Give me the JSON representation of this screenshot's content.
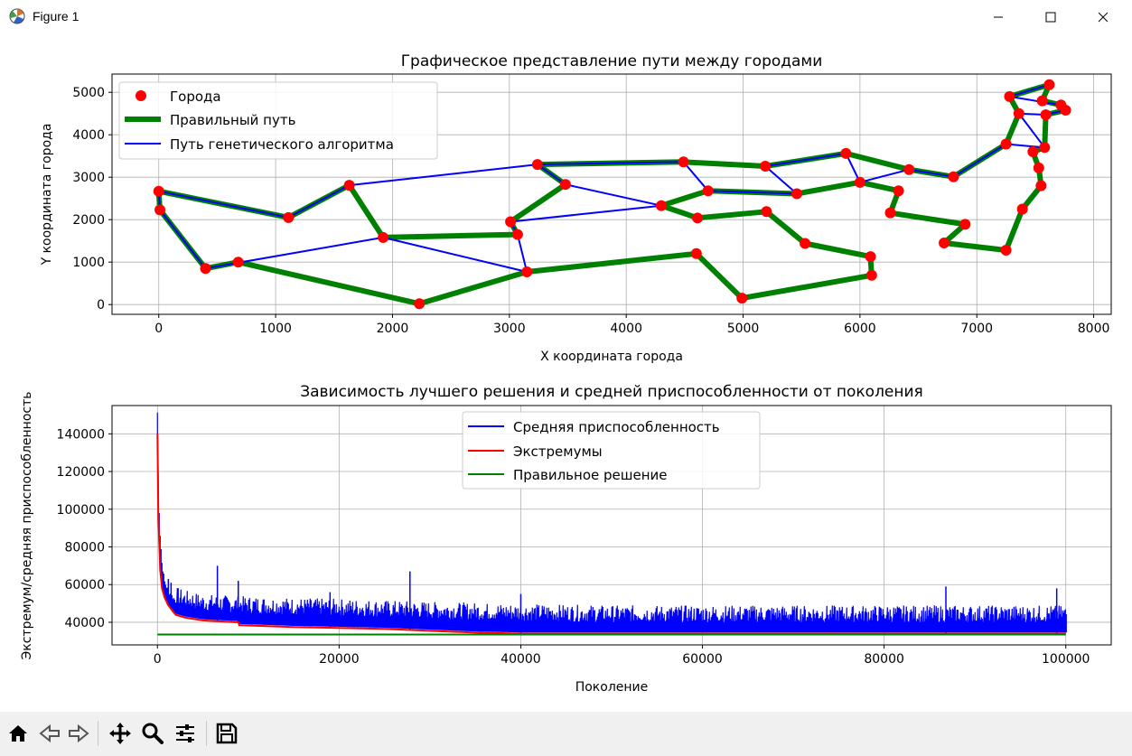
{
  "window": {
    "title": "Figure 1",
    "controls": [
      "minimize-icon",
      "maximize-icon",
      "close-icon"
    ]
  },
  "toolbar": {
    "buttons": [
      "home-icon",
      "back-icon",
      "forward-icon",
      "pan-icon",
      "zoom-icon",
      "configure-subplots-icon",
      "save-icon"
    ]
  },
  "chart_data": [
    {
      "type": "scatter",
      "title": "Графическое представление пути между городами",
      "xlabel": "X координата города",
      "ylabel": "Y координата города",
      "xlim": [
        -400,
        8150
      ],
      "ylim": [
        -230,
        5430
      ],
      "xticks": [
        0,
        1000,
        2000,
        3000,
        4000,
        5000,
        6000,
        7000,
        8000
      ],
      "yticks": [
        0,
        1000,
        2000,
        3000,
        4000,
        5000
      ],
      "grid": true,
      "legend_position": "top-left",
      "legend": [
        "Города",
        "Правильный путь",
        "Путь генетического алгоритма"
      ],
      "colors": {
        "cities": "#ff0000",
        "correct_path": "#008000",
        "ga_path": "#0000ff"
      },
      "cities": [
        [
          0,
          2670
        ],
        [
          10,
          2230
        ],
        [
          400,
          850
        ],
        [
          680,
          1000
        ],
        [
          1110,
          2050
        ],
        [
          1630,
          2810
        ],
        [
          1920,
          1580
        ],
        [
          2230,
          20
        ],
        [
          3010,
          1950
        ],
        [
          3070,
          1650
        ],
        [
          3150,
          770
        ],
        [
          3240,
          3300
        ],
        [
          3480,
          2830
        ],
        [
          4300,
          2330
        ],
        [
          4490,
          3360
        ],
        [
          4600,
          1200
        ],
        [
          4610,
          2040
        ],
        [
          4700,
          2680
        ],
        [
          4990,
          150
        ],
        [
          5190,
          3260
        ],
        [
          5200,
          2190
        ],
        [
          5460,
          2610
        ],
        [
          5530,
          1440
        ],
        [
          5880,
          3560
        ],
        [
          6000,
          2880
        ],
        [
          6090,
          1130
        ],
        [
          6100,
          690
        ],
        [
          6260,
          2160
        ],
        [
          6330,
          2680
        ],
        [
          6420,
          3180
        ],
        [
          6720,
          1450
        ],
        [
          6800,
          3010
        ],
        [
          6900,
          1890
        ],
        [
          7250,
          1280
        ],
        [
          7250,
          3780
        ],
        [
          7280,
          4900
        ],
        [
          7360,
          4500
        ],
        [
          7390,
          2250
        ],
        [
          7480,
          3600
        ],
        [
          7530,
          3220
        ],
        [
          7550,
          2800
        ],
        [
          7560,
          4800
        ],
        [
          7580,
          3700
        ],
        [
          7590,
          4470
        ],
        [
          7620,
          5180
        ],
        [
          7720,
          4700
        ],
        [
          7760,
          4580
        ]
      ],
      "correct_path": [
        [
          7620,
          5180
        ],
        [
          7280,
          4900
        ],
        [
          7360,
          4500
        ],
        [
          7250,
          3780
        ],
        [
          6800,
          3010
        ],
        [
          6420,
          3180
        ],
        [
          5880,
          3560
        ],
        [
          5190,
          3260
        ],
        [
          4490,
          3360
        ],
        [
          3240,
          3300
        ],
        [
          3480,
          2830
        ],
        [
          3010,
          1950
        ],
        [
          3070,
          1650
        ],
        [
          1920,
          1580
        ],
        [
          1630,
          2810
        ],
        [
          1110,
          2050
        ],
        [
          0,
          2670
        ],
        [
          10,
          2230
        ],
        [
          400,
          850
        ],
        [
          680,
          1000
        ],
        [
          2230,
          20
        ],
        [
          3150,
          770
        ],
        [
          4600,
          1200
        ],
        [
          4990,
          150
        ],
        [
          6100,
          690
        ],
        [
          6090,
          1130
        ],
        [
          5530,
          1440
        ],
        [
          5200,
          2190
        ],
        [
          4610,
          2040
        ],
        [
          4300,
          2330
        ],
        [
          4700,
          2680
        ],
        [
          5460,
          2610
        ],
        [
          6000,
          2880
        ],
        [
          6330,
          2680
        ],
        [
          6260,
          2160
        ],
        [
          6900,
          1890
        ],
        [
          6720,
          1450
        ],
        [
          7250,
          1280
        ],
        [
          7390,
          2250
        ],
        [
          7550,
          2800
        ],
        [
          7530,
          3220
        ],
        [
          7480,
          3600
        ],
        [
          7580,
          3700
        ],
        [
          7590,
          4470
        ],
        [
          7760,
          4580
        ],
        [
          7720,
          4700
        ],
        [
          7560,
          4800
        ],
        [
          7620,
          5180
        ]
      ],
      "ga_path": [
        [
          7620,
          5180
        ],
        [
          7280,
          4900
        ],
        [
          7720,
          4700
        ],
        [
          7760,
          4580
        ],
        [
          7590,
          4470
        ],
        [
          7360,
          4500
        ],
        [
          7580,
          3700
        ],
        [
          7250,
          3780
        ],
        [
          6800,
          3010
        ],
        [
          6420,
          3180
        ],
        [
          6000,
          2880
        ],
        [
          5880,
          3560
        ],
        [
          5190,
          3260
        ],
        [
          5460,
          2610
        ],
        [
          4700,
          2680
        ],
        [
          4490,
          3360
        ],
        [
          3240,
          3300
        ],
        [
          3480,
          2830
        ],
        [
          4300,
          2330
        ],
        [
          3010,
          1950
        ],
        [
          3070,
          1650
        ],
        [
          3150,
          770
        ],
        [
          1920,
          1580
        ],
        [
          400,
          850
        ],
        [
          10,
          2230
        ],
        [
          0,
          2670
        ],
        [
          1110,
          2050
        ],
        [
          1630,
          2810
        ],
        [
          3240,
          3300
        ]
      ]
    },
    {
      "type": "line",
      "title": "Зависимость лучшего решения и средней приспособленности от поколения",
      "xlabel": "Поколение",
      "ylabel": "Экстремум/средняя приспособленность",
      "xlim": [
        -5000,
        105000
      ],
      "ylim": [
        28000,
        155000
      ],
      "xticks": [
        0,
        20000,
        40000,
        60000,
        80000,
        100000
      ],
      "yticks": [
        40000,
        60000,
        80000,
        100000,
        120000,
        140000
      ],
      "grid": true,
      "legend_position": "upper-center",
      "series": [
        {
          "name": "Средняя приспособленность",
          "color": "#0000ff",
          "x": [
            0,
            100,
            300,
            500,
            800,
            1200,
            2000,
            3000,
            5000,
            9000,
            15000,
            20000,
            30000,
            38000,
            50000,
            60000,
            70000,
            80000,
            90000,
            100000
          ],
          "y": [
            150000,
            110000,
            85000,
            70000,
            60000,
            55000,
            50000,
            48000,
            46000,
            45000,
            44000,
            43500,
            42000,
            41000,
            40000,
            40000,
            40000,
            40000,
            40000,
            40000
          ],
          "spikes": [
            [
              1200,
              63000
            ],
            [
              1500,
              61000
            ],
            [
              6600,
              70000
            ],
            [
              8900,
              62000
            ],
            [
              19000,
              56000
            ],
            [
              27800,
              67000
            ],
            [
              40000,
              55000
            ],
            [
              86800,
              59000
            ],
            [
              99000,
              58000
            ]
          ]
        },
        {
          "name": "Экстремумы",
          "color": "#ff0000",
          "x": [
            0,
            100,
            300,
            500,
            800,
            1200,
            2000,
            3000,
            5000,
            8900,
            9000,
            15000,
            20000,
            25000,
            30000,
            35000,
            40000,
            60000,
            80000,
            100000
          ],
          "y": [
            140000,
            95000,
            68000,
            58000,
            53000,
            49000,
            44000,
            42500,
            41000,
            40000,
            38500,
            37500,
            37000,
            36500,
            35500,
            34500,
            34000,
            34000,
            34000,
            34000
          ]
        },
        {
          "name": "Правильное решение",
          "color": "#008000",
          "x": [
            0,
            100000
          ],
          "y": [
            33523,
            33523
          ]
        }
      ]
    }
  ]
}
